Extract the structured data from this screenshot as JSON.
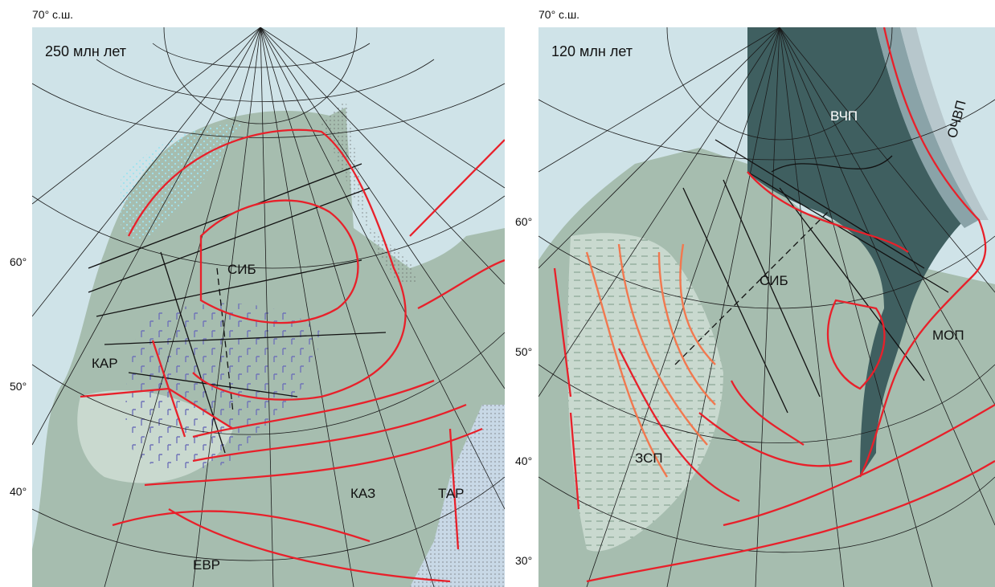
{
  "left_map": {
    "top_label": "70° с.ш.",
    "age_label": "250 млн лет",
    "lat_labels": [
      "60°",
      "50°",
      "40°"
    ],
    "region_labels": {
      "sib": "СИБ",
      "kar": "КАР",
      "kaz": "КАЗ",
      "tar": "ТАР",
      "evr": "ЕВР"
    }
  },
  "right_map": {
    "top_label": "70° с.ш.",
    "age_label": "120 млн лет",
    "lat_labels": [
      "60°",
      "50°",
      "40°",
      "30°"
    ],
    "region_labels": {
      "vchp": "ВЧП",
      "ochvp": "ОЧВП",
      "sib": "СИБ",
      "mop": "МОП",
      "zsp": "ЗСП"
    }
  },
  "colors": {
    "ocean": "#cfe3e8",
    "land": "#a6bdaf",
    "light_basin": "#c9d9cf",
    "dark_ocean_plate": "#3f5f60",
    "slope": "#8aa3a8",
    "fault_red": "#e8202a",
    "fault_orange": "#f2784f",
    "graticule": "#1a1a1a",
    "trap_marks": "#6f73b8",
    "dots_cyan": "#9fe2ef"
  }
}
